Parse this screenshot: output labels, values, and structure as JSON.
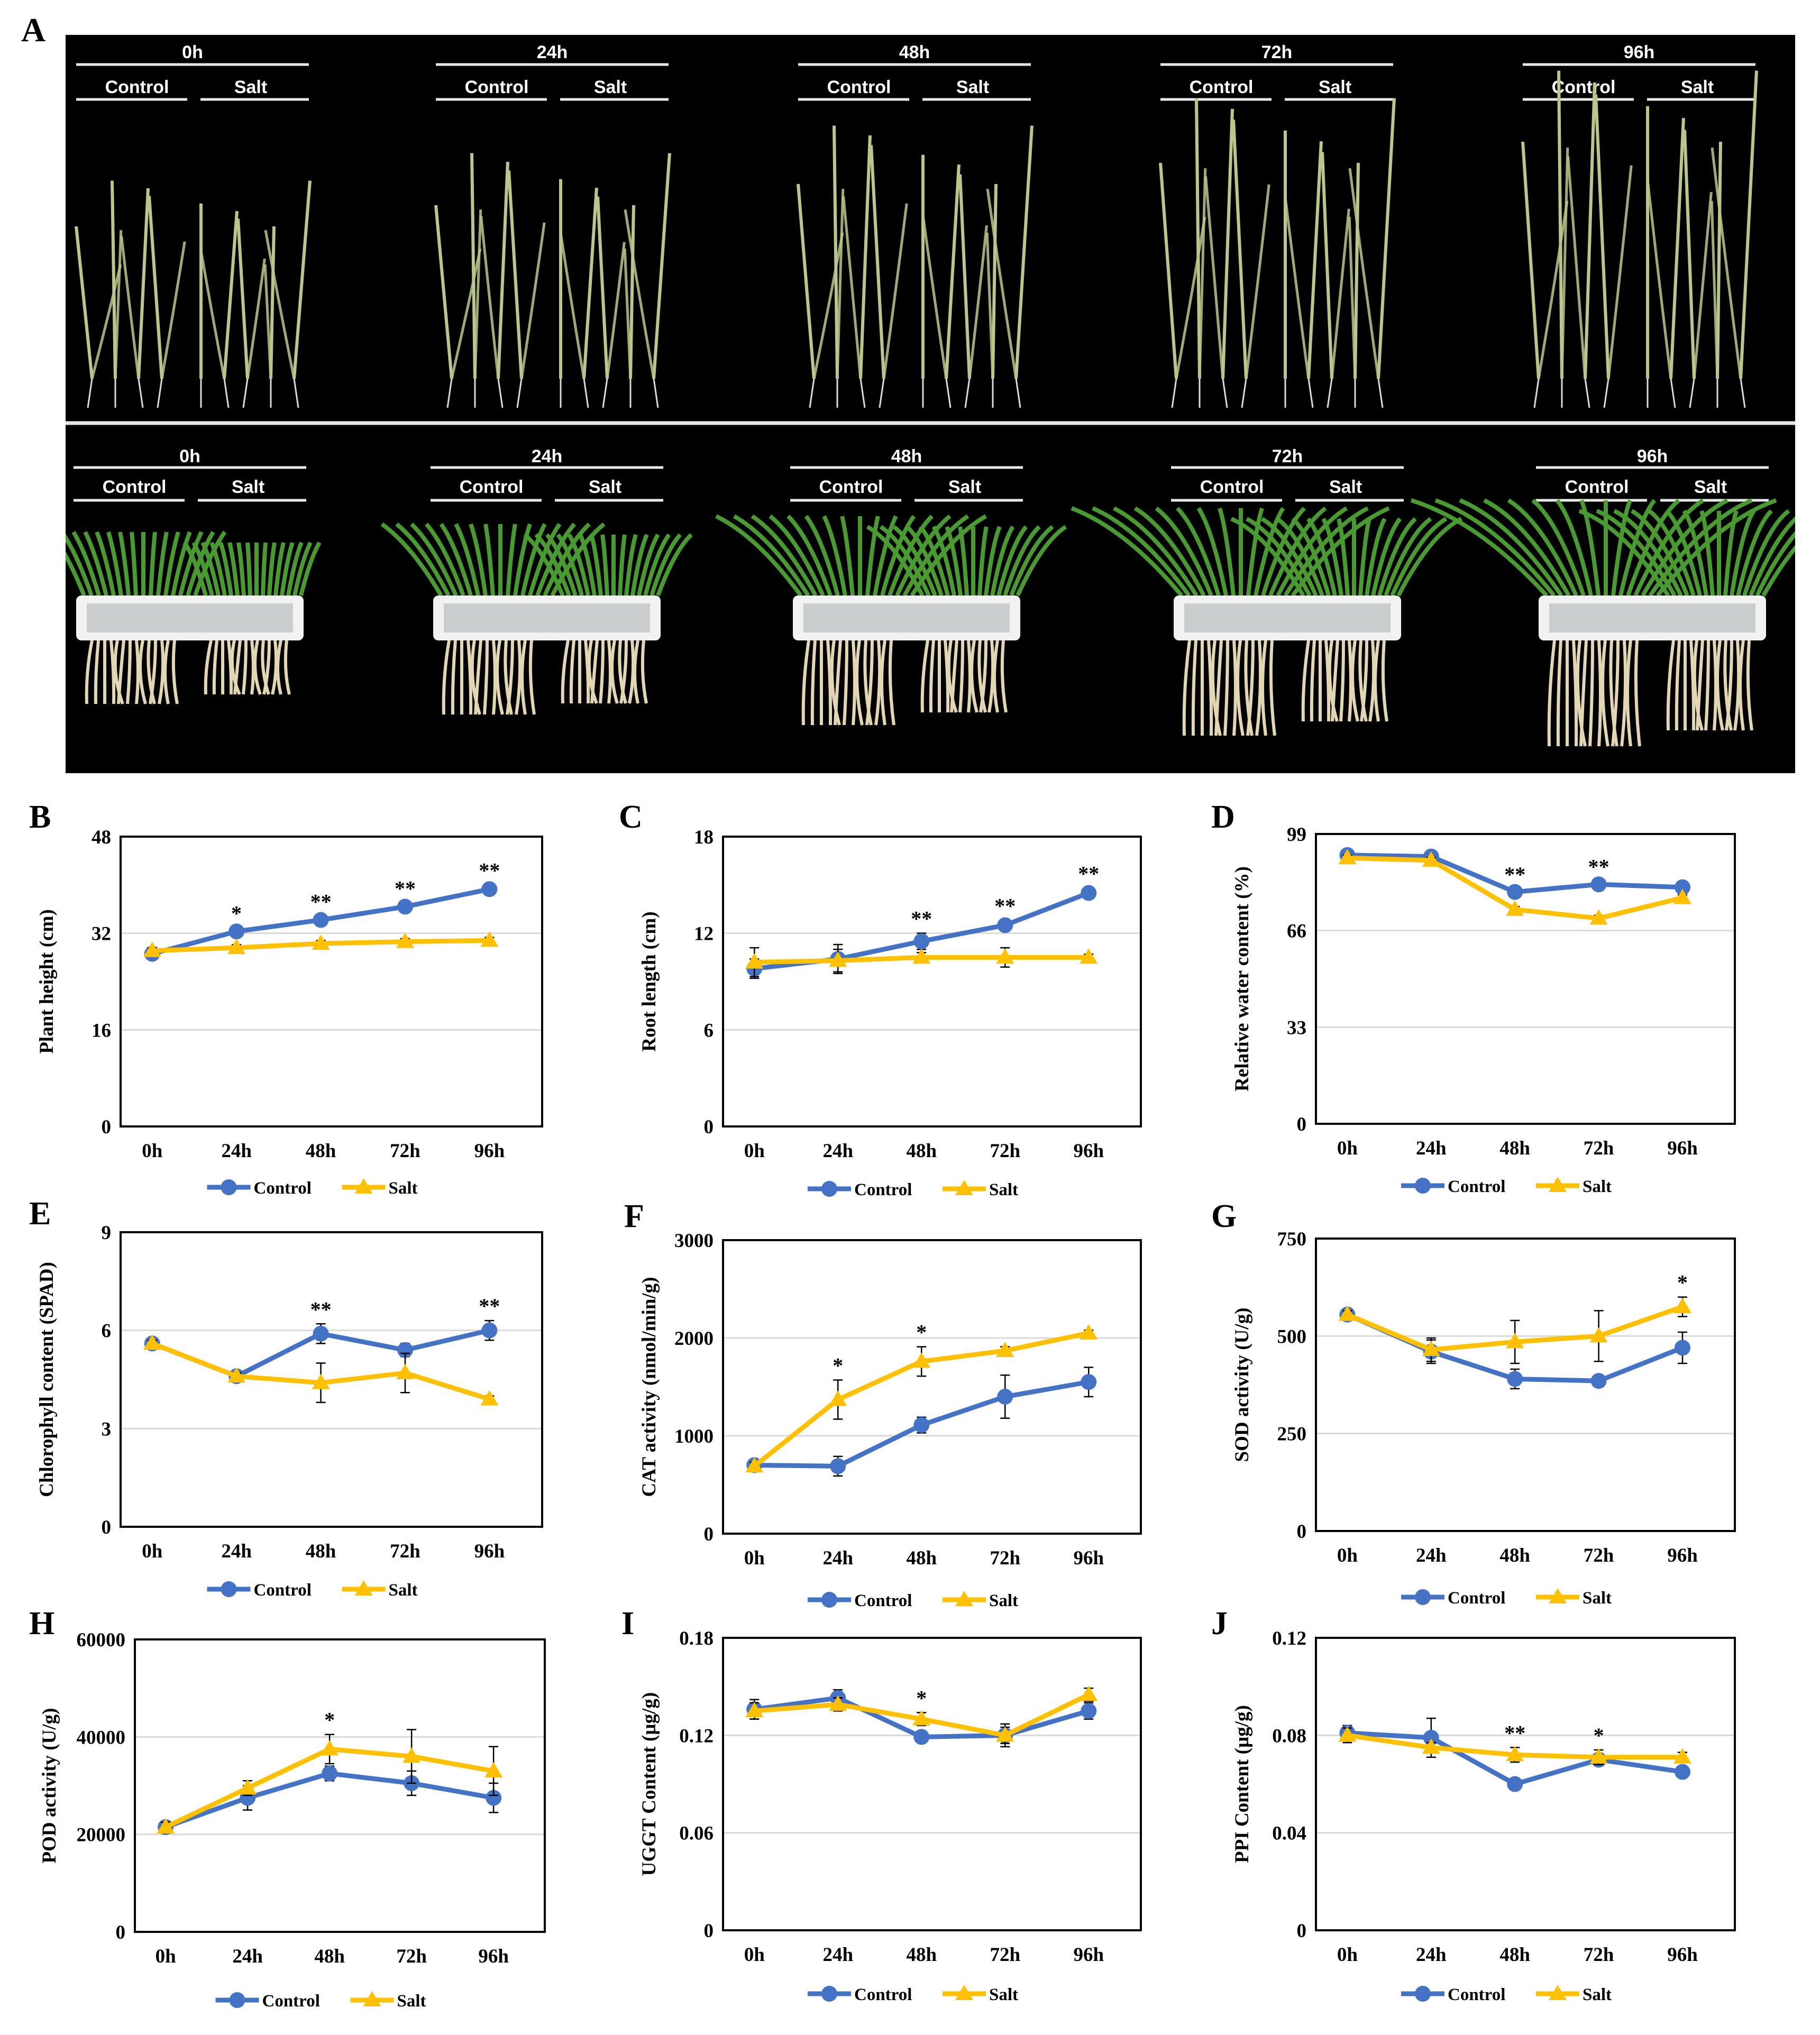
{
  "figure": {
    "panel_letter_a": "A",
    "photo_time_points": [
      "0h",
      "24h",
      "48h",
      "72h",
      "96h"
    ],
    "photo_treatment_labels": [
      "Control",
      "Salt"
    ],
    "legend_labels": [
      "Control",
      "Salt"
    ],
    "significance_marks": {
      "single": "*",
      "double": "**"
    }
  },
  "colors": {
    "control": "#4472C4",
    "salt": "#FFC000",
    "photo_background": "#000000",
    "gridline": "#d9d9d9",
    "leaf": "#4a9a32",
    "seedling": "#b9c88a",
    "root": "#e3d6b2",
    "basket": "#f2f2f2"
  },
  "chart_data": [
    {
      "panel": "B",
      "type": "line",
      "title": "",
      "xlabel": "",
      "ylabel": "Plant height (cm)",
      "categories": [
        "0h",
        "24h",
        "48h",
        "72h",
        "96h"
      ],
      "ylim": [
        0,
        48
      ],
      "yticks": [
        "0",
        "16",
        "32",
        "48"
      ],
      "grid": true,
      "series": [
        {
          "name": "Control",
          "values": [
            28.6,
            32.3,
            34.2,
            36.4,
            39.3
          ],
          "err": [
            0.6,
            0.6,
            0.6,
            0.6,
            0.7
          ]
        },
        {
          "name": "Salt",
          "values": [
            29.1,
            29.6,
            30.3,
            30.6,
            30.8
          ],
          "err": [
            0.5,
            0.5,
            0.5,
            0.5,
            0.5
          ]
        }
      ],
      "significance": [
        "",
        "*",
        "**",
        "**",
        "**"
      ]
    },
    {
      "panel": "C",
      "type": "line",
      "title": "",
      "xlabel": "",
      "ylabel": "Root length (cm)",
      "categories": [
        "0h",
        "24h",
        "48h",
        "72h",
        "96h"
      ],
      "ylim": [
        0,
        18
      ],
      "yticks": [
        "0",
        "6",
        "12",
        "18"
      ],
      "grid": true,
      "series": [
        {
          "name": "Control",
          "values": [
            9.8,
            10.4,
            11.5,
            12.5,
            14.5
          ],
          "err": [
            0.6,
            0.9,
            0.5,
            0.3,
            0.3
          ]
        },
        {
          "name": "Salt",
          "values": [
            10.2,
            10.3,
            10.5,
            10.5,
            10.5
          ],
          "err": [
            0.9,
            0.7,
            0.3,
            0.6,
            0.2
          ]
        }
      ],
      "significance": [
        "",
        "",
        "**",
        "**",
        "**"
      ]
    },
    {
      "panel": "D",
      "type": "line",
      "title": "",
      "xlabel": "",
      "ylabel": "Relative water content (%)",
      "categories": [
        "0h",
        "24h",
        "48h",
        "72h",
        "96h"
      ],
      "ylim": [
        0,
        99
      ],
      "yticks": [
        "0",
        "33",
        "66",
        "99"
      ],
      "grid": true,
      "series": [
        {
          "name": "Control",
          "values": [
            91.8,
            91.3,
            79.2,
            81.8,
            80.8
          ],
          "err": [
            1,
            1,
            1,
            1,
            1
          ]
        },
        {
          "name": "Salt",
          "values": [
            90.8,
            90,
            73.2,
            70.2,
            77.2
          ],
          "err": [
            1,
            1,
            1,
            1,
            1
          ]
        }
      ],
      "significance": [
        "",
        "",
        "**",
        "**",
        ""
      ]
    },
    {
      "panel": "E",
      "type": "line",
      "title": "",
      "xlabel": "",
      "ylabel": "Chlorophyll content (SPAD)",
      "categories": [
        "0h",
        "24h",
        "48h",
        "72h",
        "96h"
      ],
      "ylim": [
        0,
        9
      ],
      "yticks": [
        "0",
        "3",
        "6",
        "9"
      ],
      "grid": true,
      "series": [
        {
          "name": "Control",
          "values": [
            5.6,
            4.6,
            5.9,
            5.4,
            6.0
          ],
          "err": [
            0.1,
            0.1,
            0.3,
            0.2,
            0.3
          ]
        },
        {
          "name": "Salt",
          "values": [
            5.6,
            4.6,
            4.4,
            4.7,
            3.9
          ],
          "err": [
            0.1,
            0.1,
            0.6,
            0.6,
            0.1
          ]
        }
      ],
      "significance": [
        "",
        "",
        "**",
        "",
        "**"
      ]
    },
    {
      "panel": "F",
      "type": "line",
      "title": "",
      "xlabel": "",
      "ylabel": "CAT activity (nmol/min/g)",
      "categories": [
        "0h",
        "24h",
        "48h",
        "72h",
        "96h"
      ],
      "ylim": [
        0,
        3000
      ],
      "yticks": [
        "0",
        "1000",
        "2000",
        "3000"
      ],
      "grid": true,
      "series": [
        {
          "name": "Control",
          "values": [
            700,
            690,
            1110,
            1400,
            1550
          ],
          "err": [
            40,
            100,
            80,
            220,
            150
          ]
        },
        {
          "name": "Salt",
          "values": [
            690,
            1370,
            1760,
            1870,
            2050
          ],
          "err": [
            40,
            200,
            150,
            40,
            30
          ]
        }
      ],
      "significance": [
        "",
        "*",
        "*",
        "",
        ""
      ]
    },
    {
      "panel": "G",
      "type": "line",
      "title": "",
      "xlabel": "",
      "ylabel": "SOD activity (U/g)",
      "categories": [
        "0h",
        "24h",
        "48h",
        "72h",
        "96h"
      ],
      "ylim": [
        0,
        750
      ],
      "yticks": [
        "0",
        "250",
        "500",
        "750"
      ],
      "grid": true,
      "series": [
        {
          "name": "Control",
          "values": [
            555,
            460,
            390,
            385,
            470
          ],
          "err": [
            10,
            30,
            25,
            15,
            40
          ]
        },
        {
          "name": "Salt",
          "values": [
            555,
            465,
            485,
            500,
            575
          ],
          "err": [
            10,
            30,
            55,
            65,
            25
          ]
        }
      ],
      "significance": [
        "",
        "",
        "",
        "",
        "*"
      ]
    },
    {
      "panel": "H",
      "type": "line",
      "title": "",
      "xlabel": "",
      "ylabel": "POD activity (U/g)",
      "categories": [
        "0h",
        "24h",
        "48h",
        "72h",
        "96h"
      ],
      "ylim": [
        0,
        60000
      ],
      "yticks": [
        "0",
        "20000",
        "40000",
        "60000"
      ],
      "grid": true,
      "series": [
        {
          "name": "Control",
          "values": [
            21500,
            27500,
            32500,
            30500,
            27500
          ],
          "err": [
            1000,
            2500,
            1500,
            2500,
            3000
          ]
        },
        {
          "name": "Salt",
          "values": [
            21500,
            29500,
            37500,
            36000,
            33000
          ],
          "err": [
            1000,
            1500,
            3000,
            5500,
            5000
          ]
        }
      ],
      "significance": [
        "",
        "",
        "*",
        "",
        ""
      ]
    },
    {
      "panel": "I",
      "type": "line",
      "title": "",
      "xlabel": "",
      "ylabel": "UGGT Content (µg/g)",
      "categories": [
        "0h",
        "24h",
        "48h",
        "72h",
        "96h"
      ],
      "ylim": [
        0,
        0.18
      ],
      "yticks": [
        "0",
        "0.06",
        "0.12",
        "0.18"
      ],
      "grid": true,
      "series": [
        {
          "name": "Control",
          "values": [
            0.136,
            0.143,
            0.119,
            0.12,
            0.135
          ],
          "err": [
            0.006,
            0.005,
            0.003,
            0.007,
            0.005
          ]
        },
        {
          "name": "Salt",
          "values": [
            0.135,
            0.139,
            0.13,
            0.12,
            0.145
          ],
          "err": [
            0.005,
            0.004,
            0.004,
            0.005,
            0.004
          ]
        }
      ],
      "significance": [
        "",
        "",
        "*",
        "",
        ""
      ]
    },
    {
      "panel": "J",
      "type": "line",
      "title": "",
      "xlabel": "",
      "ylabel": "PPI Content (µg/g)",
      "categories": [
        "0h",
        "24h",
        "48h",
        "72h",
        "96h"
      ],
      "ylim": [
        0,
        0.12
      ],
      "yticks": [
        "0",
        "0.04",
        "0.08",
        "0.12"
      ],
      "grid": true,
      "series": [
        {
          "name": "Control",
          "values": [
            0.081,
            0.079,
            0.06,
            0.07,
            0.065
          ],
          "err": [
            0.003,
            0.008,
            0.002,
            0.002,
            0.002
          ]
        },
        {
          "name": "Salt",
          "values": [
            0.08,
            0.075,
            0.072,
            0.071,
            0.071
          ],
          "err": [
            0.003,
            0.002,
            0.003,
            0.003,
            0.002
          ]
        }
      ],
      "significance": [
        "",
        "",
        "**",
        "*",
        ""
      ]
    }
  ]
}
